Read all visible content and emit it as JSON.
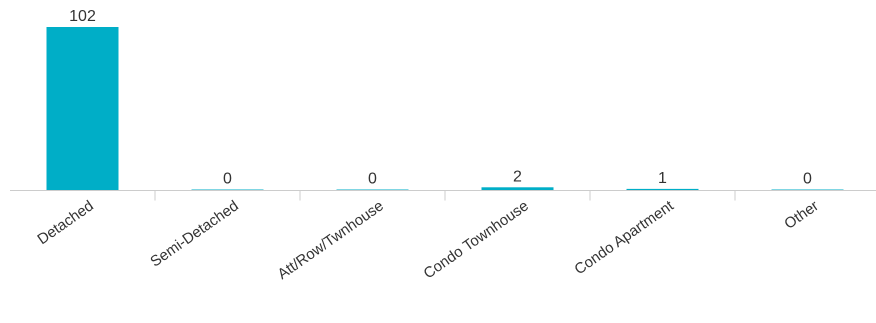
{
  "chart_data": {
    "type": "bar",
    "title": "",
    "xlabel": "",
    "ylabel": "",
    "categories": [
      "Detached",
      "Semi-Detached",
      "Att/Row/Twnhouse",
      "Condo Townhouse",
      "Condo Apartment",
      "Other"
    ],
    "values": [
      102,
      0,
      0,
      2,
      1,
      0
    ],
    "ylim": [
      0,
      102
    ],
    "grid": false,
    "legend": "none",
    "colors": {
      "bar": "#00aec7",
      "axis": "#cccccc",
      "text": "#333333"
    }
  }
}
